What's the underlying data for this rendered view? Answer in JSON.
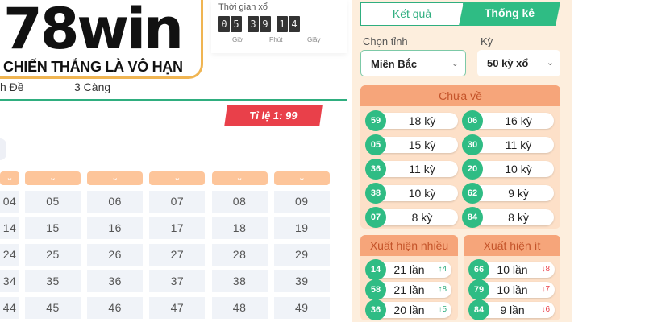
{
  "logo": {
    "brand": "78win",
    "slogan": "CHIẾN THẮNG LÀ VÔ HẠN"
  },
  "timer": {
    "label": "Thời gian xổ",
    "digits": [
      "0",
      "5",
      "3",
      "9",
      "1",
      "4"
    ],
    "units": [
      "Giờ",
      "Phút",
      "Giây"
    ]
  },
  "game_tabs": [
    "h Đề",
    "3 Càng"
  ],
  "ratio": "Tỉ lệ 1: 99",
  "grid": {
    "rows": [
      [
        "04",
        "05",
        "06",
        "07",
        "08",
        "09"
      ],
      [
        "14",
        "15",
        "16",
        "17",
        "18",
        "19"
      ],
      [
        "24",
        "25",
        "26",
        "27",
        "28",
        "29"
      ],
      [
        "34",
        "35",
        "36",
        "37",
        "38",
        "39"
      ],
      [
        "44",
        "45",
        "46",
        "47",
        "48",
        "49"
      ]
    ]
  },
  "sidebar": {
    "tabs": [
      {
        "label": "Kết quả",
        "active": false
      },
      {
        "label": "Thống kê",
        "active": true
      }
    ],
    "province_label": "Chọn tỉnh",
    "province_value": "Miền Bắc",
    "period_label": "Kỳ",
    "period_value": "50 kỳ xổ",
    "chua_ve": {
      "title": "Chưa về",
      "items": [
        {
          "n": "59",
          "v": "18 kỳ"
        },
        {
          "n": "06",
          "v": "16 kỳ"
        },
        {
          "n": "05",
          "v": "15 kỳ"
        },
        {
          "n": "30",
          "v": "11 kỳ"
        },
        {
          "n": "36",
          "v": "11 kỳ"
        },
        {
          "n": "20",
          "v": "10 kỳ"
        },
        {
          "n": "38",
          "v": "10 kỳ"
        },
        {
          "n": "62",
          "v": "9 kỳ"
        },
        {
          "n": "07",
          "v": "8 kỳ"
        },
        {
          "n": "84",
          "v": "8 kỳ"
        }
      ]
    },
    "nhieu": {
      "title": "Xuất hiện nhiều",
      "items": [
        {
          "n": "14",
          "v": "21 lần",
          "t": "↑4"
        },
        {
          "n": "58",
          "v": "21 lần",
          "t": "↑8"
        },
        {
          "n": "36",
          "v": "20 lần",
          "t": "↑5"
        }
      ]
    },
    "it": {
      "title": "Xuất hiện ít",
      "items": [
        {
          "n": "66",
          "v": "10 lần",
          "t": "↓8"
        },
        {
          "n": "79",
          "v": "10 lần",
          "t": "↓7"
        },
        {
          "n": "84",
          "v": "9 lần",
          "t": "↓6"
        }
      ]
    }
  }
}
